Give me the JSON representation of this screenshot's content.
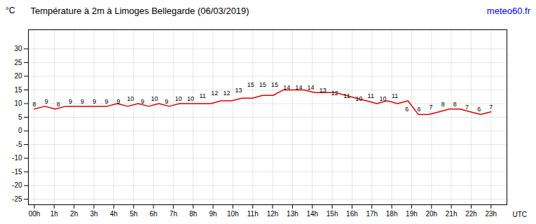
{
  "chart_data": {
    "type": "line",
    "title": "Température à 2m à Limoges Bellegarde (06/03/2019)",
    "xlabel": "UTC",
    "ylabel": "°C",
    "x": [
      0,
      0.522727,
      1.045455,
      1.568182,
      2.090909,
      2.613636,
      3.136364,
      3.659091,
      4.181818,
      4.704545,
      5.227273,
      5.75,
      6.272727,
      6.795455,
      7.318182,
      7.840909,
      8.363636,
      8.886364,
      9.409091,
      9.931818,
      10.454545,
      10.977273,
      11.5,
      12.022727,
      12.545455,
      13.068182,
      13.590909,
      14.113636,
      14.636364,
      15.159091,
      15.681818,
      16.204545,
      16.727273,
      17.25,
      17.772727,
      18.295455,
      18.818182,
      19.340909,
      19.863636,
      20.386364,
      20.909091,
      21.431818,
      21.954545,
      22.477273,
      23
    ],
    "values": [
      8,
      9,
      8,
      9,
      9,
      9,
      9,
      9,
      10,
      9,
      10,
      9,
      10,
      9,
      10,
      10,
      10,
      10,
      11,
      11,
      12,
      12,
      13,
      13,
      15,
      15,
      15,
      14,
      14,
      14,
      13,
      12,
      11,
      10,
      11,
      10,
      11,
      6,
      6,
      7,
      8,
      8,
      7,
      6,
      7
    ],
    "color": "#dd0000",
    "point_labels": {
      "x": [
        0,
        0.605263,
        1.210526,
        1.815789,
        2.421053,
        3.026316,
        3.631579,
        4.236842,
        4.842105,
        5.447368,
        6.052632,
        6.657895,
        7.263158,
        7.868421,
        8.473684,
        9.078947,
        9.684211,
        10.289474,
        10.894737,
        11.5,
        12.105263,
        12.710526,
        13.315789,
        13.921053,
        14.526316,
        15.131579,
        15.736842,
        16.342105,
        16.947368,
        17.552632,
        18.157895,
        18.763158,
        19.368421,
        19.973684,
        20.578947,
        21.184211,
        21.789474,
        22.394737,
        23
      ],
      "values": [
        8,
        9,
        8,
        9,
        9,
        9,
        9,
        9,
        10,
        9,
        10,
        9,
        10,
        10,
        11,
        12,
        12,
        13,
        15,
        15,
        15,
        14,
        14,
        14,
        13,
        12,
        11,
        10,
        11,
        10,
        11,
        6,
        6,
        7,
        8,
        8,
        7,
        6,
        7
      ]
    },
    "xlim": [
      -0.3,
      23.8
    ],
    "xticks": [
      {
        "value": 0,
        "label": "00h"
      },
      {
        "value": 1,
        "label": "1h"
      },
      {
        "value": 2,
        "label": "2h"
      },
      {
        "value": 3,
        "label": "3h"
      },
      {
        "value": 4,
        "label": "4h"
      },
      {
        "value": 5,
        "label": "5h"
      },
      {
        "value": 6,
        "label": "6h"
      },
      {
        "value": 7,
        "label": "7h"
      },
      {
        "value": 8,
        "label": "8h"
      },
      {
        "value": 9,
        "label": "9h"
      },
      {
        "value": 10,
        "label": "10h"
      },
      {
        "value": 11,
        "label": "11h"
      },
      {
        "value": 12,
        "label": "12h"
      },
      {
        "value": 13,
        "label": "13h"
      },
      {
        "value": 14,
        "label": "14h"
      },
      {
        "value": 15,
        "label": "15h"
      },
      {
        "value": 16,
        "label": "16h"
      },
      {
        "value": 17,
        "label": "17h"
      },
      {
        "value": 18,
        "label": "18h"
      },
      {
        "value": 19,
        "label": "19h"
      },
      {
        "value": 20,
        "label": "20h"
      },
      {
        "value": 21,
        "label": "21h"
      },
      {
        "value": 22,
        "label": "22h"
      },
      {
        "value": 23,
        "label": "23h"
      }
    ],
    "ylim": [
      -27,
      37
    ],
    "yticks": [
      -25,
      -20,
      -15,
      -10,
      -5,
      0,
      5,
      10,
      15,
      20,
      25,
      30
    ],
    "grid": true,
    "annotations": [
      {
        "text": "meteo60.fr",
        "color": "blue"
      }
    ]
  }
}
